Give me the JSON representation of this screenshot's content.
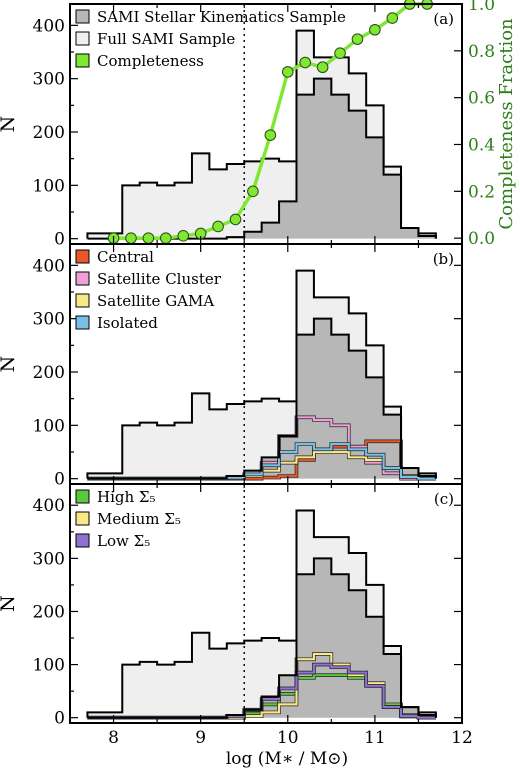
{
  "x_axis": {
    "label": "log (M∗ / M⊙)",
    "range": [
      7.5,
      12
    ],
    "ticks": [
      8,
      9,
      10,
      11,
      12
    ]
  },
  "chart_data": [
    {
      "panel_label": "(a)",
      "type": "bar",
      "ylabel": "N",
      "ylim": [
        -10,
        440
      ],
      "yticks": [
        0,
        100,
        200,
        300,
        400
      ],
      "right_axis": {
        "label": "Completeness Fraction",
        "ylim": [
          -0.025,
          1.0
        ],
        "ticks": [
          0.0,
          0.2,
          0.4,
          0.6,
          0.8,
          1.0
        ],
        "color": "#2e7d1a"
      },
      "bin_edges": [
        7.7,
        7.9,
        8.1,
        8.3,
        8.5,
        8.7,
        8.9,
        9.1,
        9.3,
        9.5,
        9.7,
        9.9,
        10.1,
        10.3,
        10.5,
        10.7,
        10.9,
        11.1,
        11.3,
        11.5,
        11.7
      ],
      "series": [
        {
          "name": "SAMI Stellar Kinematics Sample",
          "style": "filled-dark",
          "color": "#b7b7b7",
          "values": [
            0,
            0,
            0,
            0,
            0,
            0,
            0,
            0,
            3,
            13,
            30,
            70,
            270,
            300,
            270,
            240,
            190,
            120,
            20,
            5
          ]
        },
        {
          "name": "Full SAMI Sample",
          "style": "filled-light",
          "color": "#efefef",
          "values": [
            10,
            10,
            100,
            105,
            100,
            105,
            160,
            130,
            140,
            145,
            150,
            145,
            390,
            340,
            340,
            310,
            250,
            135,
            20,
            10
          ]
        },
        {
          "name": "Completeness",
          "style": "line-markers",
          "color": "#7fe832",
          "x": [
            8.0,
            8.2,
            8.4,
            8.6,
            8.8,
            9.0,
            9.2,
            9.4,
            9.6,
            9.8,
            10.0,
            10.2,
            10.4,
            10.6,
            10.8,
            11.0,
            11.2,
            11.4,
            11.6
          ],
          "values": [
            0.0,
            0.0,
            0.0,
            0.0,
            0.01,
            0.02,
            0.05,
            0.08,
            0.2,
            0.44,
            0.71,
            0.75,
            0.73,
            0.79,
            0.85,
            0.89,
            0.94,
            1.0,
            1.0
          ]
        }
      ]
    },
    {
      "panel_label": "(b)",
      "type": "bar",
      "ylabel": "N",
      "ylim": [
        -10,
        440
      ],
      "yticks": [
        0,
        100,
        200,
        300,
        400
      ],
      "bin_edges": [
        7.7,
        7.9,
        8.1,
        8.3,
        8.5,
        8.7,
        8.9,
        9.1,
        9.3,
        9.5,
        9.7,
        9.9,
        10.1,
        10.3,
        10.5,
        10.7,
        10.9,
        11.1,
        11.3,
        11.5,
        11.7
      ],
      "series": [
        {
          "name": "",
          "style": "filled-dark",
          "color": "#b7b7b7",
          "values": [
            0,
            0,
            0,
            0,
            0,
            0,
            0,
            0,
            5,
            15,
            40,
            80,
            270,
            300,
            270,
            240,
            190,
            120,
            20,
            5
          ]
        },
        {
          "name": "",
          "style": "filled-light",
          "color": "#efefef",
          "values": [
            10,
            10,
            100,
            105,
            100,
            105,
            160,
            130,
            140,
            145,
            150,
            145,
            390,
            340,
            340,
            310,
            250,
            135,
            20,
            10
          ]
        },
        {
          "name": "Central",
          "style": "step",
          "color": "#e8572a",
          "values": [
            0,
            0,
            0,
            0,
            0,
            0,
            0,
            0,
            0,
            0,
            2,
            5,
            35,
            55,
            60,
            60,
            70,
            70,
            5,
            0
          ]
        },
        {
          "name": "Satellite Cluster",
          "style": "step",
          "color": "#f0a0d8",
          "values": [
            0,
            0,
            0,
            0,
            0,
            0,
            0,
            0,
            2,
            6,
            30,
            80,
            115,
            110,
            100,
            60,
            30,
            10,
            0,
            0
          ]
        },
        {
          "name": "Satellite GAMA",
          "style": "step",
          "color": "#f8e888",
          "values": [
            0,
            0,
            0,
            0,
            0,
            0,
            0,
            0,
            2,
            5,
            15,
            30,
            40,
            50,
            50,
            40,
            35,
            20,
            5,
            0
          ]
        },
        {
          "name": "Isolated",
          "style": "step",
          "color": "#78c0e8",
          "values": [
            0,
            0,
            0,
            0,
            0,
            0,
            0,
            0,
            2,
            8,
            25,
            50,
            65,
            55,
            65,
            55,
            45,
            20,
            3,
            0
          ]
        }
      ]
    },
    {
      "panel_label": "(c)",
      "type": "bar",
      "ylabel": "N",
      "ylim": [
        -10,
        440
      ],
      "yticks": [
        0,
        100,
        200,
        300,
        400
      ],
      "bin_edges": [
        7.7,
        7.9,
        8.1,
        8.3,
        8.5,
        8.7,
        8.9,
        9.1,
        9.3,
        9.5,
        9.7,
        9.9,
        10.1,
        10.3,
        10.5,
        10.7,
        10.9,
        11.1,
        11.3,
        11.5,
        11.7
      ],
      "series": [
        {
          "name": "",
          "style": "filled-dark",
          "color": "#b7b7b7",
          "values": [
            0,
            0,
            0,
            0,
            0,
            0,
            0,
            0,
            5,
            15,
            40,
            80,
            270,
            300,
            270,
            240,
            190,
            120,
            20,
            5
          ]
        },
        {
          "name": "",
          "style": "filled-light",
          "color": "#efefef",
          "values": [
            10,
            10,
            100,
            105,
            100,
            105,
            160,
            130,
            140,
            145,
            150,
            145,
            390,
            340,
            340,
            310,
            250,
            135,
            20,
            10
          ]
        },
        {
          "name": "High Σ₅",
          "style": "step",
          "color": "#5ac83c",
          "values": [
            0,
            0,
            0,
            0,
            0,
            0,
            0,
            0,
            2,
            8,
            25,
            45,
            75,
            80,
            80,
            75,
            60,
            25,
            5,
            0
          ]
        },
        {
          "name": "Medium Σ₅",
          "style": "step",
          "color": "#f8e888",
          "values": [
            0,
            0,
            0,
            0,
            0,
            0,
            0,
            0,
            0,
            3,
            10,
            25,
            110,
            120,
            100,
            80,
            65,
            20,
            2,
            0
          ]
        },
        {
          "name": "Low Σ₅",
          "style": "step",
          "color": "#9070d0",
          "values": [
            0,
            0,
            0,
            0,
            0,
            0,
            0,
            0,
            3,
            15,
            35,
            55,
            85,
            100,
            95,
            85,
            60,
            20,
            3,
            0
          ]
        }
      ]
    }
  ],
  "reference_line": {
    "x": 9.5,
    "style": "dotted"
  }
}
